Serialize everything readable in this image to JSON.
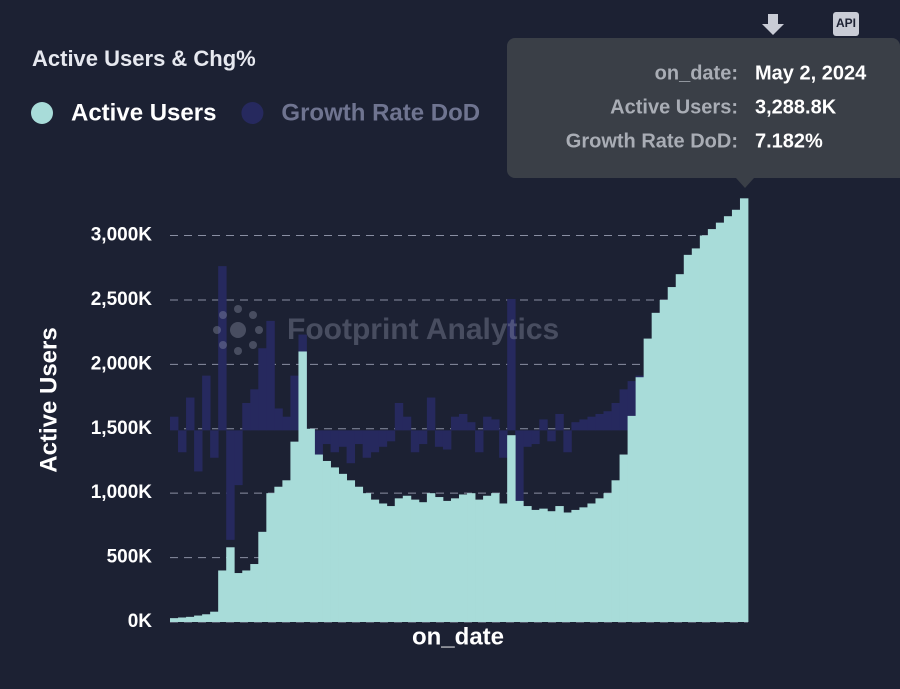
{
  "chart_data": {
    "type": "bar",
    "title": "Active Users & Chg%",
    "x_label": "on_date",
    "y_label": "Active Users",
    "watermark": "Footprint Analytics",
    "api_button": "API",
    "tooltip_labels": [
      "on_date:",
      "Active Users:",
      "Growth Rate DoD:"
    ],
    "categories": [
      null,
      null,
      null,
      null,
      null,
      null,
      null,
      null,
      null,
      null,
      null,
      null,
      null,
      null,
      null,
      null,
      null,
      null,
      null,
      null,
      null,
      null,
      null,
      null,
      null,
      null,
      null,
      null,
      null,
      null,
      null,
      null,
      null,
      null,
      null,
      null,
      null,
      null,
      null,
      null,
      null,
      null,
      null,
      null,
      null,
      null,
      null,
      null,
      null,
      null,
      null,
      null,
      null,
      null,
      null,
      null,
      null,
      null,
      null,
      null,
      null,
      null,
      null,
      null,
      null,
      null,
      null,
      null,
      null,
      null,
      null,
      "May 2, 2024"
    ],
    "series": [
      {
        "name": "Active Users",
        "color": "#a8dcd9",
        "values": [
          30,
          35,
          40,
          50,
          60,
          80,
          400,
          580,
          380,
          400,
          450,
          700,
          1000,
          1050,
          1100,
          1400,
          2100,
          1500,
          1300,
          1250,
          1200,
          1150,
          1100,
          1050,
          1000,
          950,
          920,
          900,
          960,
          980,
          950,
          930,
          1000,
          970,
          940,
          960,
          990,
          1000,
          950,
          980,
          1000,
          920,
          1450,
          940,
          900,
          870,
          880,
          860,
          900,
          850,
          870,
          890,
          920,
          960,
          1000,
          1100,
          1300,
          1600,
          1900,
          2200,
          2400,
          2500,
          2600,
          2700,
          2850,
          2900,
          3000,
          3050,
          3100,
          3150,
          3200,
          3288.8
        ],
        "value_labels": [
          null,
          null,
          null,
          null,
          null,
          null,
          null,
          null,
          null,
          null,
          null,
          null,
          null,
          null,
          null,
          null,
          null,
          null,
          null,
          null,
          null,
          null,
          null,
          null,
          null,
          null,
          null,
          null,
          null,
          null,
          null,
          null,
          null,
          null,
          null,
          null,
          null,
          null,
          null,
          null,
          null,
          null,
          null,
          null,
          null,
          null,
          null,
          null,
          null,
          null,
          null,
          null,
          null,
          null,
          null,
          null,
          null,
          null,
          null,
          null,
          null,
          null,
          null,
          null,
          null,
          null,
          null,
          null,
          null,
          null,
          null,
          "3,288.8K"
        ]
      },
      {
        "name": "Growth Rate DoD",
        "color": "#26295e",
        "axis": "y2",
        "values": [
          5,
          -8,
          12,
          -15,
          20,
          -10,
          60,
          -40,
          -20,
          10,
          15,
          30,
          40,
          8,
          5,
          20,
          35,
          -20,
          -10,
          -5,
          -8,
          -6,
          -12,
          -5,
          -10,
          -8,
          -6,
          -4,
          10,
          5,
          -8,
          -5,
          12,
          -6,
          -7,
          5,
          6,
          3,
          -8,
          5,
          4,
          -10,
          48,
          -30,
          -6,
          -5,
          4,
          -4,
          6,
          -8,
          3,
          4,
          5,
          6,
          7,
          10,
          15,
          18,
          20,
          16,
          12,
          8,
          6,
          7,
          8,
          5,
          6,
          4,
          3,
          4,
          3,
          7.182
        ],
        "value_labels": [
          null,
          null,
          null,
          null,
          null,
          null,
          null,
          null,
          null,
          null,
          null,
          null,
          null,
          null,
          null,
          null,
          null,
          null,
          null,
          null,
          null,
          null,
          null,
          null,
          null,
          null,
          null,
          null,
          null,
          null,
          null,
          null,
          null,
          null,
          null,
          null,
          null,
          null,
          null,
          null,
          null,
          null,
          null,
          null,
          null,
          null,
          null,
          null,
          null,
          null,
          null,
          null,
          null,
          null,
          null,
          null,
          null,
          null,
          null,
          null,
          null,
          null,
          null,
          null,
          null,
          null,
          null,
          null,
          null,
          null,
          null,
          "7.182%"
        ]
      }
    ],
    "ylim": [
      0,
      3400
    ],
    "yticks": [
      {
        "value": 0,
        "label": "0K"
      },
      {
        "value": 500,
        "label": "500K"
      },
      {
        "value": 1000,
        "label": "1,000K"
      },
      {
        "value": 1500,
        "label": "1,500K"
      },
      {
        "value": 2000,
        "label": "2,000K"
      },
      {
        "value": 2500,
        "label": "2,500K"
      },
      {
        "value": 3000,
        "label": "3,000K"
      }
    ],
    "y2lim": [
      -70,
      90
    ],
    "grid": true
  }
}
